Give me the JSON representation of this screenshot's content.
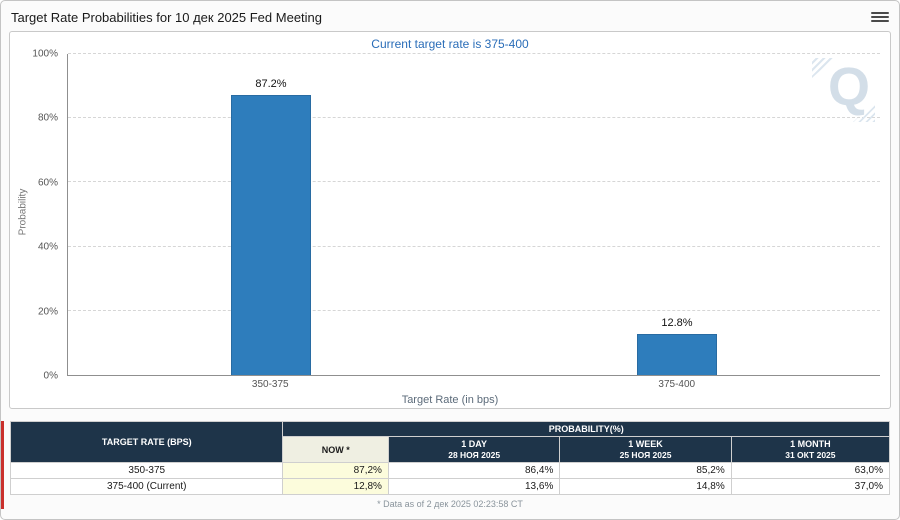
{
  "header": {
    "title": "Target Rate Probabilities for 10 дек 2025 Fed Meeting",
    "icons": {
      "menu": "hamburger-icon"
    }
  },
  "chart": {
    "subtitle": "Current target rate is 375-400",
    "ylabel": "Probability",
    "xlabel": "Target Rate (in bps)",
    "watermark": "Q"
  },
  "chart_data": {
    "type": "bar",
    "categories": [
      "350-375",
      "375-400"
    ],
    "values": [
      87.2,
      12.8
    ],
    "value_labels": [
      "87.2%",
      "12.8%"
    ],
    "title": "Target Rate Probabilities for 10 дек 2025 Fed Meeting",
    "xlabel": "Target Rate (in bps)",
    "ylabel": "Probability",
    "ylim": [
      0,
      100
    ],
    "yticks": [
      "0%",
      "20%",
      "40%",
      "60%",
      "80%",
      "100%"
    ],
    "grid": "dashed horizontal",
    "legend": "none",
    "bar_color": "#2e7dbc"
  },
  "table": {
    "col_header_left": "TARGET RATE (BPS)",
    "col_header_group": "PROBABILITY(%)",
    "sub_headers": [
      {
        "line1": "NOW *",
        "line2": ""
      },
      {
        "line1": "1 DAY",
        "line2": "28 НОЯ 2025"
      },
      {
        "line1": "1 WEEK",
        "line2": "25 НОЯ 2025"
      },
      {
        "line1": "1 MONTH",
        "line2": "31 ОКТ 2025"
      }
    ],
    "rows": [
      {
        "rate": "350-375",
        "now": "87,2%",
        "day": "86,4%",
        "week": "85,2%",
        "month": "63,0%"
      },
      {
        "rate": "375-400 (Current)",
        "now": "12,8%",
        "day": "13,6%",
        "week": "14,8%",
        "month": "37,0%"
      }
    ],
    "footnote": "* Data as of 2 дек 2025 02:23:58 CT"
  }
}
